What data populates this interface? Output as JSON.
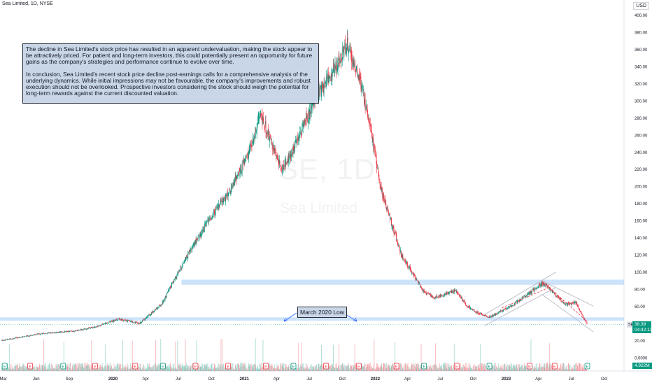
{
  "header": {
    "title": "Sea Limited, 1D, NYSE",
    "currency": "USD"
  },
  "watermark": {
    "symbol": "SE, 1D",
    "name": "Sea Limited"
  },
  "note": {
    "p1": "The decline in Sea Limited's stock price has resulted in an apparent undervaluation, making the stock appear to be attractively priced. For patient and long-term investors, this could potentially present an opportunity for future gains as the company's strategies and performance continue to evolve over time.",
    "p2": "In conclusion, Sea Limited's recent stock price decline post-earnings calls for a comprehensive analysis of the underlying dynamics. While initial impressions may not be favourable, the company's improvements and robust execution should not be overlooked. Prospective investors considering the stock should weigh the potential for long-term rewards against the current discounted valuation."
  },
  "annotation": {
    "label": "March 2020 Low"
  },
  "price_tag": {
    "ticker": "SE",
    "price": "38.39",
    "countdown": "04:42:13"
  },
  "volume_tag": {
    "value": "4.922M"
  },
  "colors": {
    "up": "#089981",
    "down": "#f23645",
    "zone": "#bbd9f8",
    "channel": "#b2b5be",
    "note_bg": "#c9d6e8"
  },
  "chart_data": {
    "type": "candlestick",
    "title": "Sea Limited, 1D, NYSE",
    "ylim": [
      0,
      400
    ],
    "y_ticks": [
      "0.0000",
      "20.00",
      "40.00",
      "60.00",
      "80.00",
      "100.00",
      "120.00",
      "140.00",
      "160.00",
      "180.00",
      "200.00",
      "220.00",
      "240.00",
      "260.00",
      "280.00",
      "300.00",
      "320.00",
      "340.00",
      "360.00",
      "380.00",
      "400.00"
    ],
    "x_ticks": [
      "Mar",
      "Jun",
      "Sep",
      "2020",
      "Apr",
      "Jul",
      "Oct",
      "2021",
      "Apr",
      "Jul",
      "Oct",
      "2022",
      "Apr",
      "Jul",
      "Oct",
      "2023",
      "Apr",
      "Jul",
      "Oct"
    ],
    "price_path": [
      [
        "2019-03",
        20
      ],
      [
        "2019-06",
        28
      ],
      [
        "2019-09",
        31
      ],
      [
        "2019-11",
        36
      ],
      [
        "2020-01",
        45
      ],
      [
        "2020-03",
        40
      ],
      [
        "2020-05",
        62
      ],
      [
        "2020-07",
        110
      ],
      [
        "2020-09",
        155
      ],
      [
        "2020-11",
        190
      ],
      [
        "2021-01",
        240
      ],
      [
        "2021-02",
        285
      ],
      [
        "2021-04",
        220
      ],
      [
        "2021-05",
        240
      ],
      [
        "2021-07",
        300
      ],
      [
        "2021-09",
        340
      ],
      [
        "2021-10",
        368
      ],
      [
        "2021-11",
        330
      ],
      [
        "2021-12",
        280
      ],
      [
        "2022-01",
        200
      ],
      [
        "2022-03",
        120
      ],
      [
        "2022-05",
        78
      ],
      [
        "2022-06",
        70
      ],
      [
        "2022-08",
        78
      ],
      [
        "2022-09",
        60
      ],
      [
        "2022-10",
        52
      ],
      [
        "2022-11",
        47
      ],
      [
        "2023-01",
        60
      ],
      [
        "2023-03",
        78
      ],
      [
        "2023-04",
        87
      ],
      [
        "2023-06",
        62
      ],
      [
        "2023-07",
        64
      ],
      [
        "2023-08",
        38.39
      ]
    ],
    "last_price": 38.39,
    "zones": [
      [
        85,
        91
      ],
      [
        43,
        47
      ]
    ],
    "annotations": [
      "March 2020 Low"
    ],
    "last_volume": "4.922M"
  }
}
